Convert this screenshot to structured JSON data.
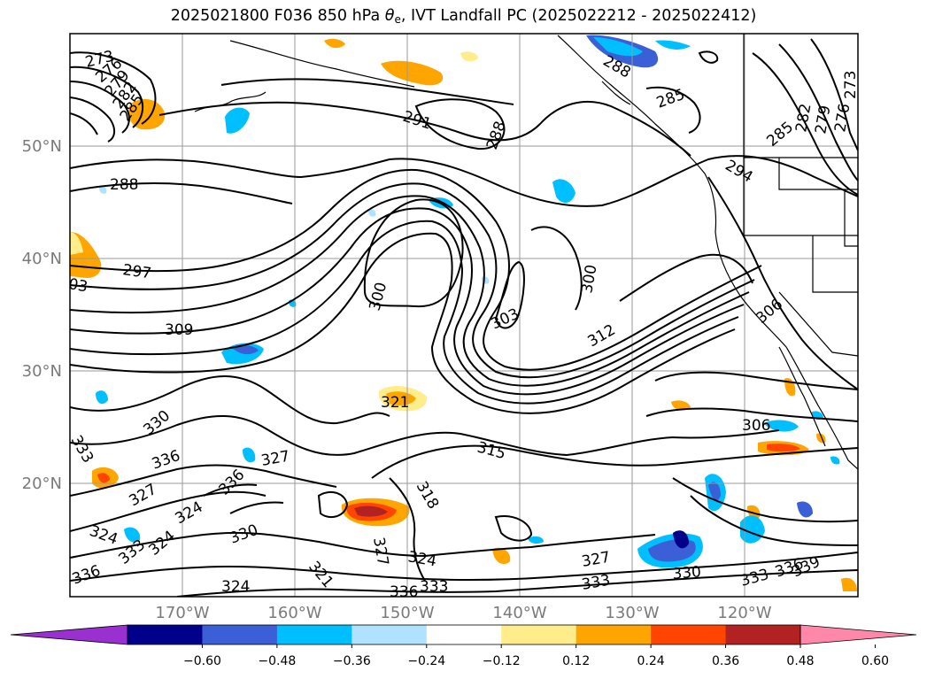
{
  "title": {
    "prefix": "2025021800 F036 850 hPa ",
    "theta": "θ",
    "theta_sub": "e",
    "suffix": ", IVT Landfall PC (2025022212 - 2025022412)"
  },
  "map": {
    "lon_ticks": [
      "170°W",
      "160°W",
      "150°W",
      "140°W",
      "130°W",
      "120°W"
    ],
    "lat_ticks": [
      "50°N",
      "40°N",
      "30°N",
      "20°N"
    ],
    "contour_labels": [
      "273",
      "276",
      "279",
      "282",
      "285",
      "288",
      "291",
      "294",
      "297",
      "300",
      "303",
      "306",
      "309",
      "312",
      "315",
      "318",
      "321",
      "324",
      "327",
      "330",
      "333",
      "336",
      "339"
    ]
  },
  "colorbar": {
    "ticks": [
      "−0.60",
      "−0.48",
      "−0.36",
      "−0.24",
      "−0.12",
      "0.12",
      "0.24",
      "0.36",
      "0.48",
      "0.60"
    ],
    "colors": [
      "#9b30d0",
      "#00008b",
      "#3a5fd6",
      "#00bfff",
      "#b0e2ff",
      "#ffffff",
      "#ffec8b",
      "#ffa500",
      "#ff4500",
      "#b22222",
      "#ff88aa"
    ]
  }
}
